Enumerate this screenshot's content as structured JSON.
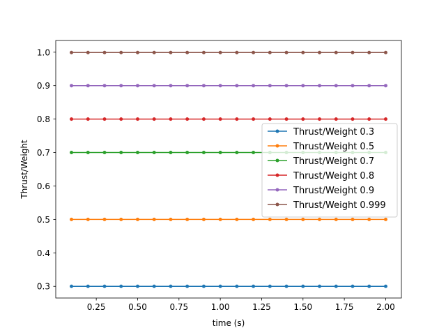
{
  "chart_data": {
    "type": "line",
    "title": "",
    "xlabel": "time (s)",
    "ylabel": "Thrust/Weight",
    "xlim": [
      0.005,
      2.095
    ],
    "ylim": [
      0.265,
      1.035
    ],
    "xticks": [
      0.25,
      0.5,
      0.75,
      1.0,
      1.25,
      1.5,
      1.75,
      2.0
    ],
    "xtick_labels": [
      "0.25",
      "0.50",
      "0.75",
      "1.00",
      "1.25",
      "1.50",
      "1.75",
      "2.00"
    ],
    "yticks": [
      0.3,
      0.4,
      0.5,
      0.6,
      0.7,
      0.8,
      0.9,
      1.0
    ],
    "ytick_labels": [
      "0.3",
      "0.4",
      "0.5",
      "0.6",
      "0.7",
      "0.8",
      "0.9",
      "1.0"
    ],
    "grid": false,
    "legend_position": "center-right",
    "x": [
      0.1,
      0.2,
      0.3,
      0.4,
      0.5,
      0.6,
      0.7,
      0.8,
      0.9,
      1.0,
      1.1,
      1.2,
      1.3,
      1.4,
      1.5,
      1.6,
      1.7,
      1.8,
      1.9,
      2.0
    ],
    "series": [
      {
        "name": "Thrust/Weight 0.3",
        "color": "#1f77b4",
        "values": [
          0.3,
          0.3,
          0.3,
          0.3,
          0.3,
          0.3,
          0.3,
          0.3,
          0.3,
          0.3,
          0.3,
          0.3,
          0.3,
          0.3,
          0.3,
          0.3,
          0.3,
          0.3,
          0.3,
          0.3
        ]
      },
      {
        "name": "Thrust/Weight 0.5",
        "color": "#ff7f0e",
        "values": [
          0.5,
          0.5,
          0.5,
          0.5,
          0.5,
          0.5,
          0.5,
          0.5,
          0.5,
          0.5,
          0.5,
          0.5,
          0.5,
          0.5,
          0.5,
          0.5,
          0.5,
          0.5,
          0.5,
          0.5
        ]
      },
      {
        "name": "Thrust/Weight 0.7",
        "color": "#2ca02c",
        "values": [
          0.7,
          0.7,
          0.7,
          0.7,
          0.7,
          0.7,
          0.7,
          0.7,
          0.7,
          0.7,
          0.7,
          0.7,
          0.7,
          0.7,
          0.7,
          0.7,
          0.7,
          0.7,
          0.7,
          0.7
        ]
      },
      {
        "name": "Thrust/Weight 0.8",
        "color": "#d62728",
        "values": [
          0.8,
          0.8,
          0.8,
          0.8,
          0.8,
          0.8,
          0.8,
          0.8,
          0.8,
          0.8,
          0.8,
          0.8,
          0.8,
          0.8,
          0.8,
          0.8,
          0.8,
          0.8,
          0.8,
          0.8
        ]
      },
      {
        "name": "Thrust/Weight 0.9",
        "color": "#9467bd",
        "values": [
          0.9,
          0.9,
          0.9,
          0.9,
          0.9,
          0.9,
          0.9,
          0.9,
          0.9,
          0.9,
          0.9,
          0.9,
          0.9,
          0.9,
          0.9,
          0.9,
          0.9,
          0.9,
          0.9,
          0.9
        ]
      },
      {
        "name": "Thrust/Weight 0.999",
        "color": "#8c564b",
        "values": [
          0.999,
          0.999,
          0.999,
          0.999,
          0.999,
          0.999,
          0.999,
          0.999,
          0.999,
          0.999,
          0.999,
          0.999,
          0.999,
          0.999,
          0.999,
          0.999,
          0.999,
          0.999,
          0.999,
          0.999
        ]
      }
    ]
  }
}
